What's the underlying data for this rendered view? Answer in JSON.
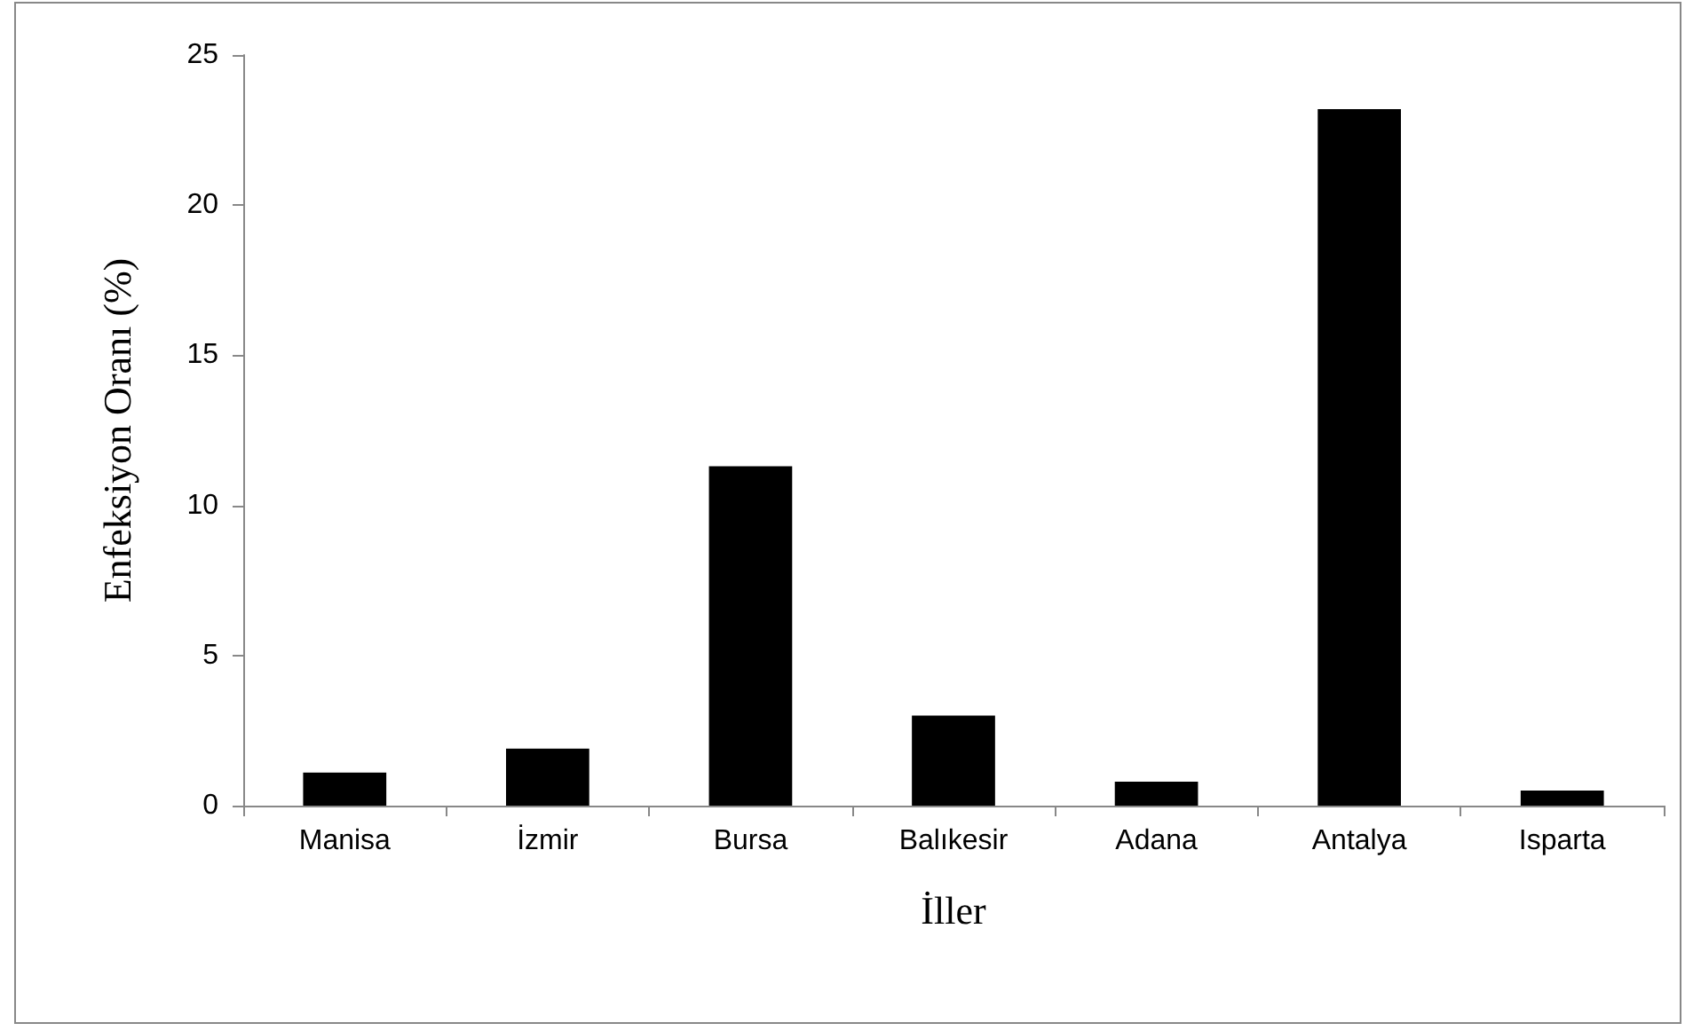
{
  "chart_data": {
    "type": "bar",
    "xlabel": "İller",
    "ylabel": "Enfeksiyon Oranı (%)",
    "categories": [
      "Manisa",
      "İzmir",
      "Bursa",
      "Balıkesir",
      "Adana",
      "Antalya",
      "Isparta"
    ],
    "values": [
      1.1,
      1.9,
      11.3,
      3.0,
      0.8,
      23.2,
      0.5
    ],
    "color": "#000000",
    "ylim": [
      0,
      25
    ],
    "yticks": [
      0,
      5,
      10,
      15,
      20,
      25
    ]
  }
}
